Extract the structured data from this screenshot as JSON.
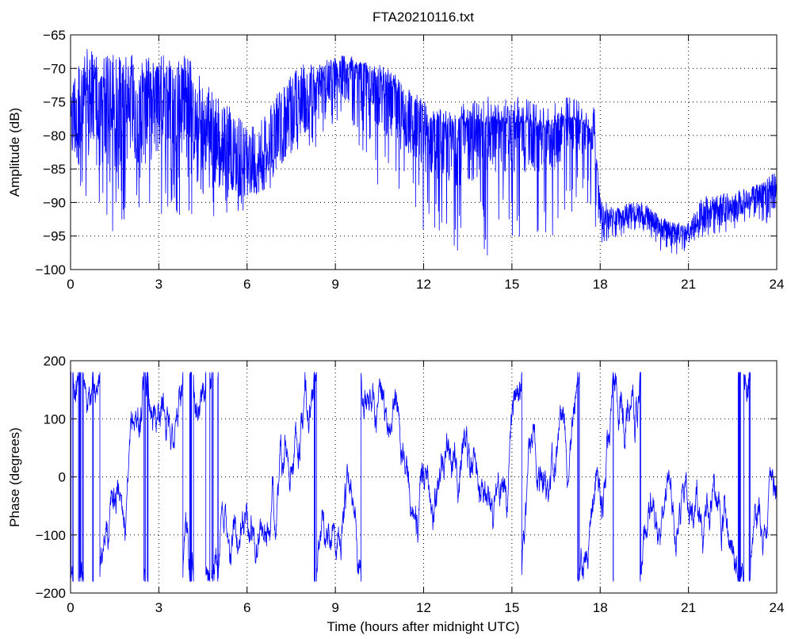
{
  "window": {
    "title": "FTA20210116.txt"
  },
  "colors": {
    "line": "#0000ff",
    "axis": "#000000",
    "grid": "#000000",
    "background": "#ffffff"
  },
  "chart_data": [
    {
      "type": "line",
      "title": "FTA20210116.txt",
      "xlabel": "",
      "ylabel": "Amplitude (dB)",
      "xlim": [
        0,
        24
      ],
      "ylim": [
        -100,
        -65
      ],
      "xticks": [
        0,
        3,
        6,
        9,
        12,
        15,
        18,
        21,
        24
      ],
      "yticks": [
        -100,
        -95,
        -90,
        -85,
        -80,
        -75,
        -70,
        -65
      ],
      "xtick_labels": [
        "0",
        "3",
        "6",
        "9",
        "12",
        "15",
        "18",
        "21",
        "24"
      ],
      "ytick_labels": [
        "−100",
        "−95",
        "−90",
        "−85",
        "−80",
        "−75",
        "−70",
        "−65"
      ],
      "grid": true,
      "series": [
        {
          "color": "#0000ff",
          "x": [
            0,
            0.5,
            1,
            1.5,
            2,
            2.5,
            3,
            3.5,
            4,
            4.5,
            5,
            5.5,
            6,
            6.5,
            7,
            7.5,
            8,
            8.5,
            9,
            9.5,
            10,
            10.5,
            11,
            11.5,
            12,
            12.5,
            13,
            13.5,
            14,
            14.5,
            15,
            15.5,
            16,
            16.5,
            17,
            17.5,
            17.8,
            18,
            18.5,
            19,
            19.5,
            20,
            20.5,
            21,
            21.5,
            22,
            22.5,
            23,
            23.5,
            24
          ],
          "center": [
            -79,
            -78,
            -78,
            -79,
            -77,
            -78,
            -76,
            -76,
            -77,
            -80,
            -83,
            -84,
            -86,
            -85,
            -82,
            -78,
            -76,
            -74,
            -72,
            -72,
            -73,
            -74,
            -76,
            -78,
            -80,
            -81,
            -82,
            -81,
            -80,
            -80,
            -80,
            -80,
            -81,
            -80,
            -78,
            -79,
            -79,
            -92,
            -93,
            -92,
            -92,
            -94,
            -95,
            -95,
            -92,
            -92,
            -91,
            -90,
            -89,
            -89
          ],
          "upper": [
            -72,
            -67,
            -68,
            -68,
            -68,
            -68,
            -68,
            -68,
            -68,
            -72,
            -74,
            -76,
            -79,
            -77,
            -74,
            -71,
            -69,
            -69,
            -68,
            -68,
            -69,
            -70,
            -71,
            -73,
            -75,
            -76,
            -77,
            -76,
            -77,
            -77,
            -77,
            -77,
            -78,
            -77,
            -77,
            -78,
            -80,
            -89,
            -91,
            -90,
            -90,
            -92,
            -93,
            -93,
            -89,
            -89,
            -88,
            -88,
            -87,
            -85
          ],
          "lower": [
            -91,
            -91,
            -93,
            -96,
            -91,
            -92,
            -93,
            -92,
            -92,
            -92,
            -93,
            -91,
            -92,
            -89,
            -87,
            -85,
            -82,
            -82,
            -78,
            -79,
            -83,
            -88,
            -90,
            -92,
            -95,
            -96,
            -97,
            -99,
            -98,
            -98,
            -98,
            -98,
            -96,
            -95,
            -92,
            -92,
            -94,
            -96,
            -96,
            -94,
            -95,
            -97,
            -98,
            -97,
            -95,
            -95,
            -94,
            -93,
            -94,
            -92
          ]
        }
      ]
    },
    {
      "type": "line",
      "title": "",
      "xlabel": "Time (hours after midnight UTC)",
      "ylabel": "Phase (degrees)",
      "xlim": [
        0,
        24
      ],
      "ylim": [
        -200,
        200
      ],
      "xticks": [
        0,
        3,
        6,
        9,
        12,
        15,
        18,
        21,
        24
      ],
      "yticks": [
        -200,
        -100,
        0,
        100,
        200
      ],
      "xtick_labels": [
        "0",
        "3",
        "6",
        "9",
        "12",
        "15",
        "18",
        "21",
        "24"
      ],
      "ytick_labels": [
        "−200",
        "−100",
        "0",
        "100",
        "200"
      ],
      "grid": true,
      "series": [
        {
          "color": "#0000ff",
          "wrap": [
            -180,
            180
          ],
          "x": [
            0,
            24
          ],
          "y_range": [
            -180,
            180
          ]
        }
      ]
    }
  ]
}
